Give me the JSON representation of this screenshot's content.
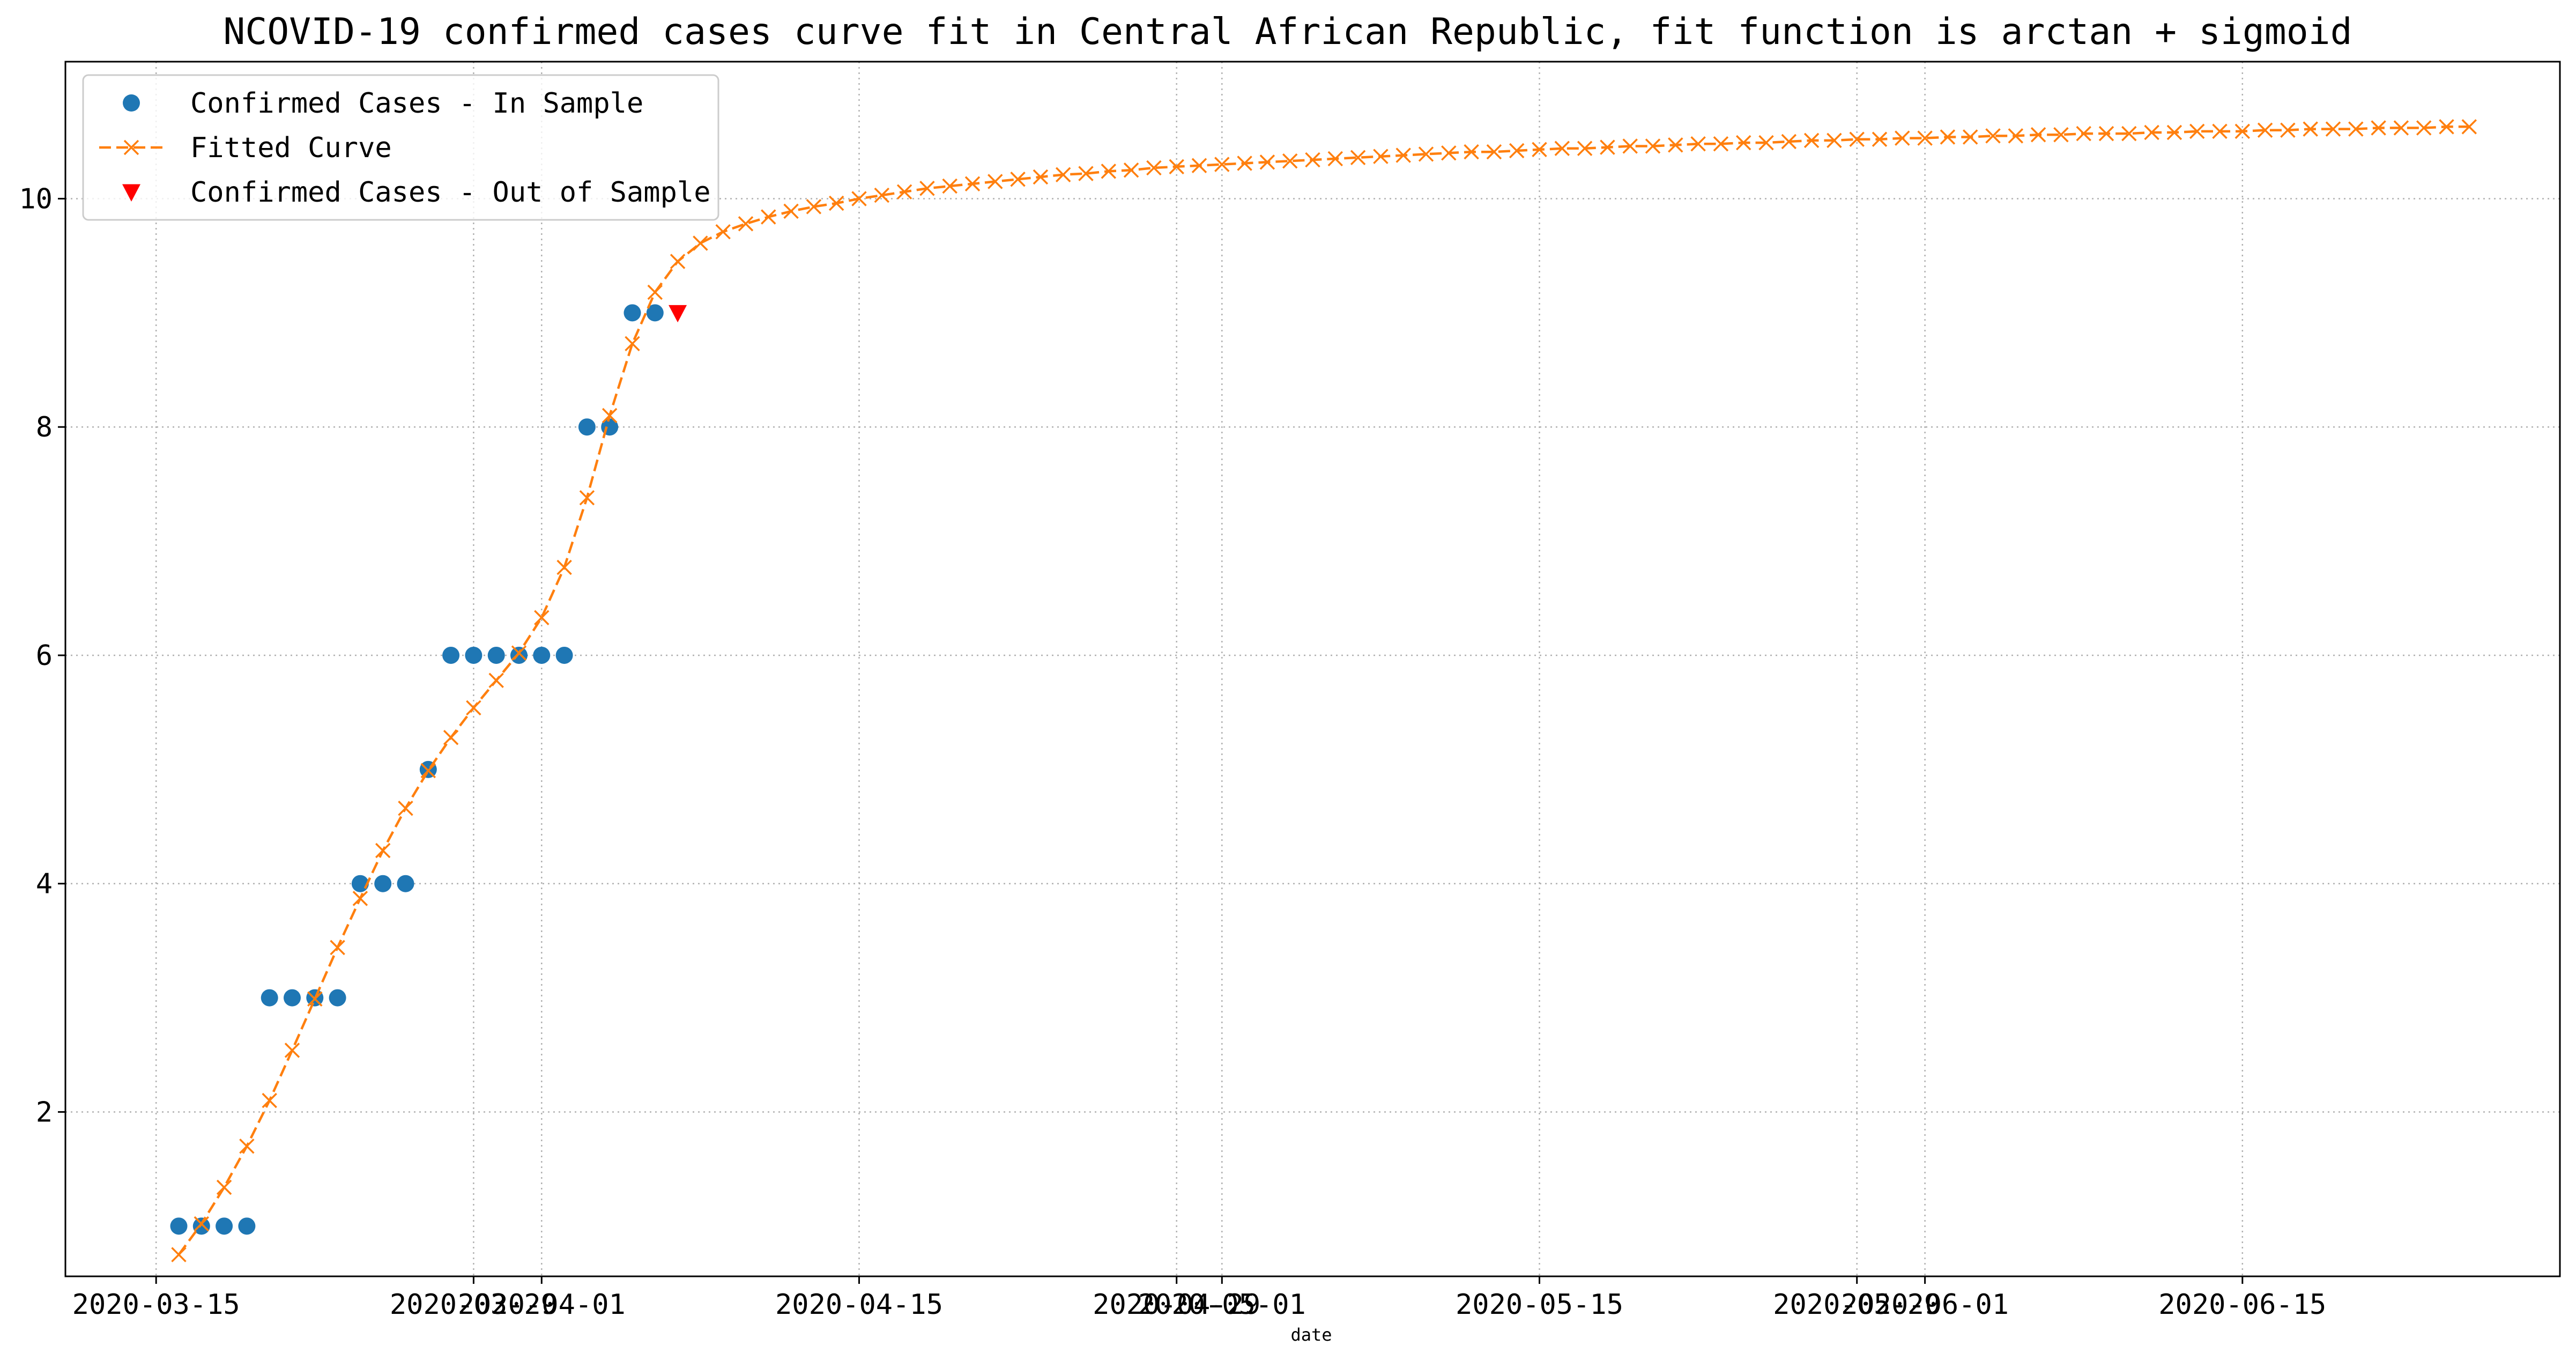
{
  "chart_data": {
    "type": "line",
    "title": "NCOVID-19 confirmed cases curve fit in Central African Republic, fit function is arctan + sigmoid",
    "xlabel": "date",
    "ylabel": "",
    "x_axis": {
      "type": "date",
      "range": [
        "2020-03-11",
        "2020-06-29"
      ],
      "ticks": [
        {
          "date": "2020-03-15",
          "label": "2020-03-15"
        },
        {
          "date": "2020-03-29",
          "label": "2020-03-29"
        },
        {
          "date": "2020-04-01",
          "label": "2020-04-01"
        },
        {
          "date": "2020-04-15",
          "label": "2020-04-15"
        },
        {
          "date": "2020-04-29",
          "label": "2020-04-29"
        },
        {
          "date": "2020-05-01",
          "label": "2020-05-01"
        },
        {
          "date": "2020-05-15",
          "label": "2020-05-15"
        },
        {
          "date": "2020-05-29",
          "label": "2020-05-29"
        },
        {
          "date": "2020-06-01",
          "label": "2020-06-01"
        },
        {
          "date": "2020-06-15",
          "label": "2020-06-15"
        }
      ]
    },
    "y_axis": {
      "range": [
        0.56,
        11.2
      ],
      "ticks": [
        2,
        4,
        6,
        8,
        10
      ]
    },
    "grid": true,
    "legend_position": "top-left",
    "series": [
      {
        "name": "Confirmed Cases - In Sample",
        "kind": "points",
        "marker": "circle",
        "color": "#1f77b4",
        "start_date": "2020-03-16",
        "values": [
          1,
          1,
          1,
          1,
          3,
          3,
          3,
          3,
          4,
          4,
          4,
          5,
          6,
          6,
          6,
          6,
          6,
          6,
          8,
          8,
          9,
          9
        ]
      },
      {
        "name": "Fitted Curve",
        "kind": "line",
        "marker": "x",
        "color": "#ff7f0e",
        "start_date": "2020-03-16",
        "values": [
          0.75,
          1.02,
          1.34,
          1.7,
          2.1,
          2.54,
          2.99,
          3.44,
          3.87,
          4.29,
          4.66,
          4.99,
          5.28,
          5.54,
          5.78,
          6.02,
          6.33,
          6.77,
          7.38,
          8.1,
          8.73,
          9.18,
          9.45,
          9.61,
          9.71,
          9.78,
          9.84,
          9.89,
          9.93,
          9.96,
          10.0,
          10.03,
          10.06,
          10.09,
          10.11,
          10.13,
          10.15,
          10.17,
          10.19,
          10.21,
          10.22,
          10.24,
          10.25,
          10.27,
          10.28,
          10.29,
          10.3,
          10.31,
          10.32,
          10.33,
          10.34,
          10.35,
          10.36,
          10.37,
          10.38,
          10.39,
          10.4,
          10.41,
          10.41,
          10.42,
          10.43,
          10.44,
          10.44,
          10.45,
          10.46,
          10.46,
          10.47,
          10.48,
          10.48,
          10.49,
          10.49,
          10.5,
          10.51,
          10.51,
          10.52,
          10.52,
          10.53,
          10.53,
          10.54,
          10.54,
          10.55,
          10.55,
          10.56,
          10.56,
          10.57,
          10.57,
          10.57,
          10.58,
          10.58,
          10.59,
          10.59,
          10.59,
          10.6,
          10.6,
          10.61,
          10.61,
          10.61,
          10.62,
          10.62,
          10.62,
          10.63,
          10.63
        ]
      },
      {
        "name": "Confirmed Cases - Out of Sample",
        "kind": "points",
        "marker": "triangle-down",
        "color": "#ff0000",
        "start_date": "2020-04-07",
        "values": [
          9
        ]
      }
    ]
  }
}
